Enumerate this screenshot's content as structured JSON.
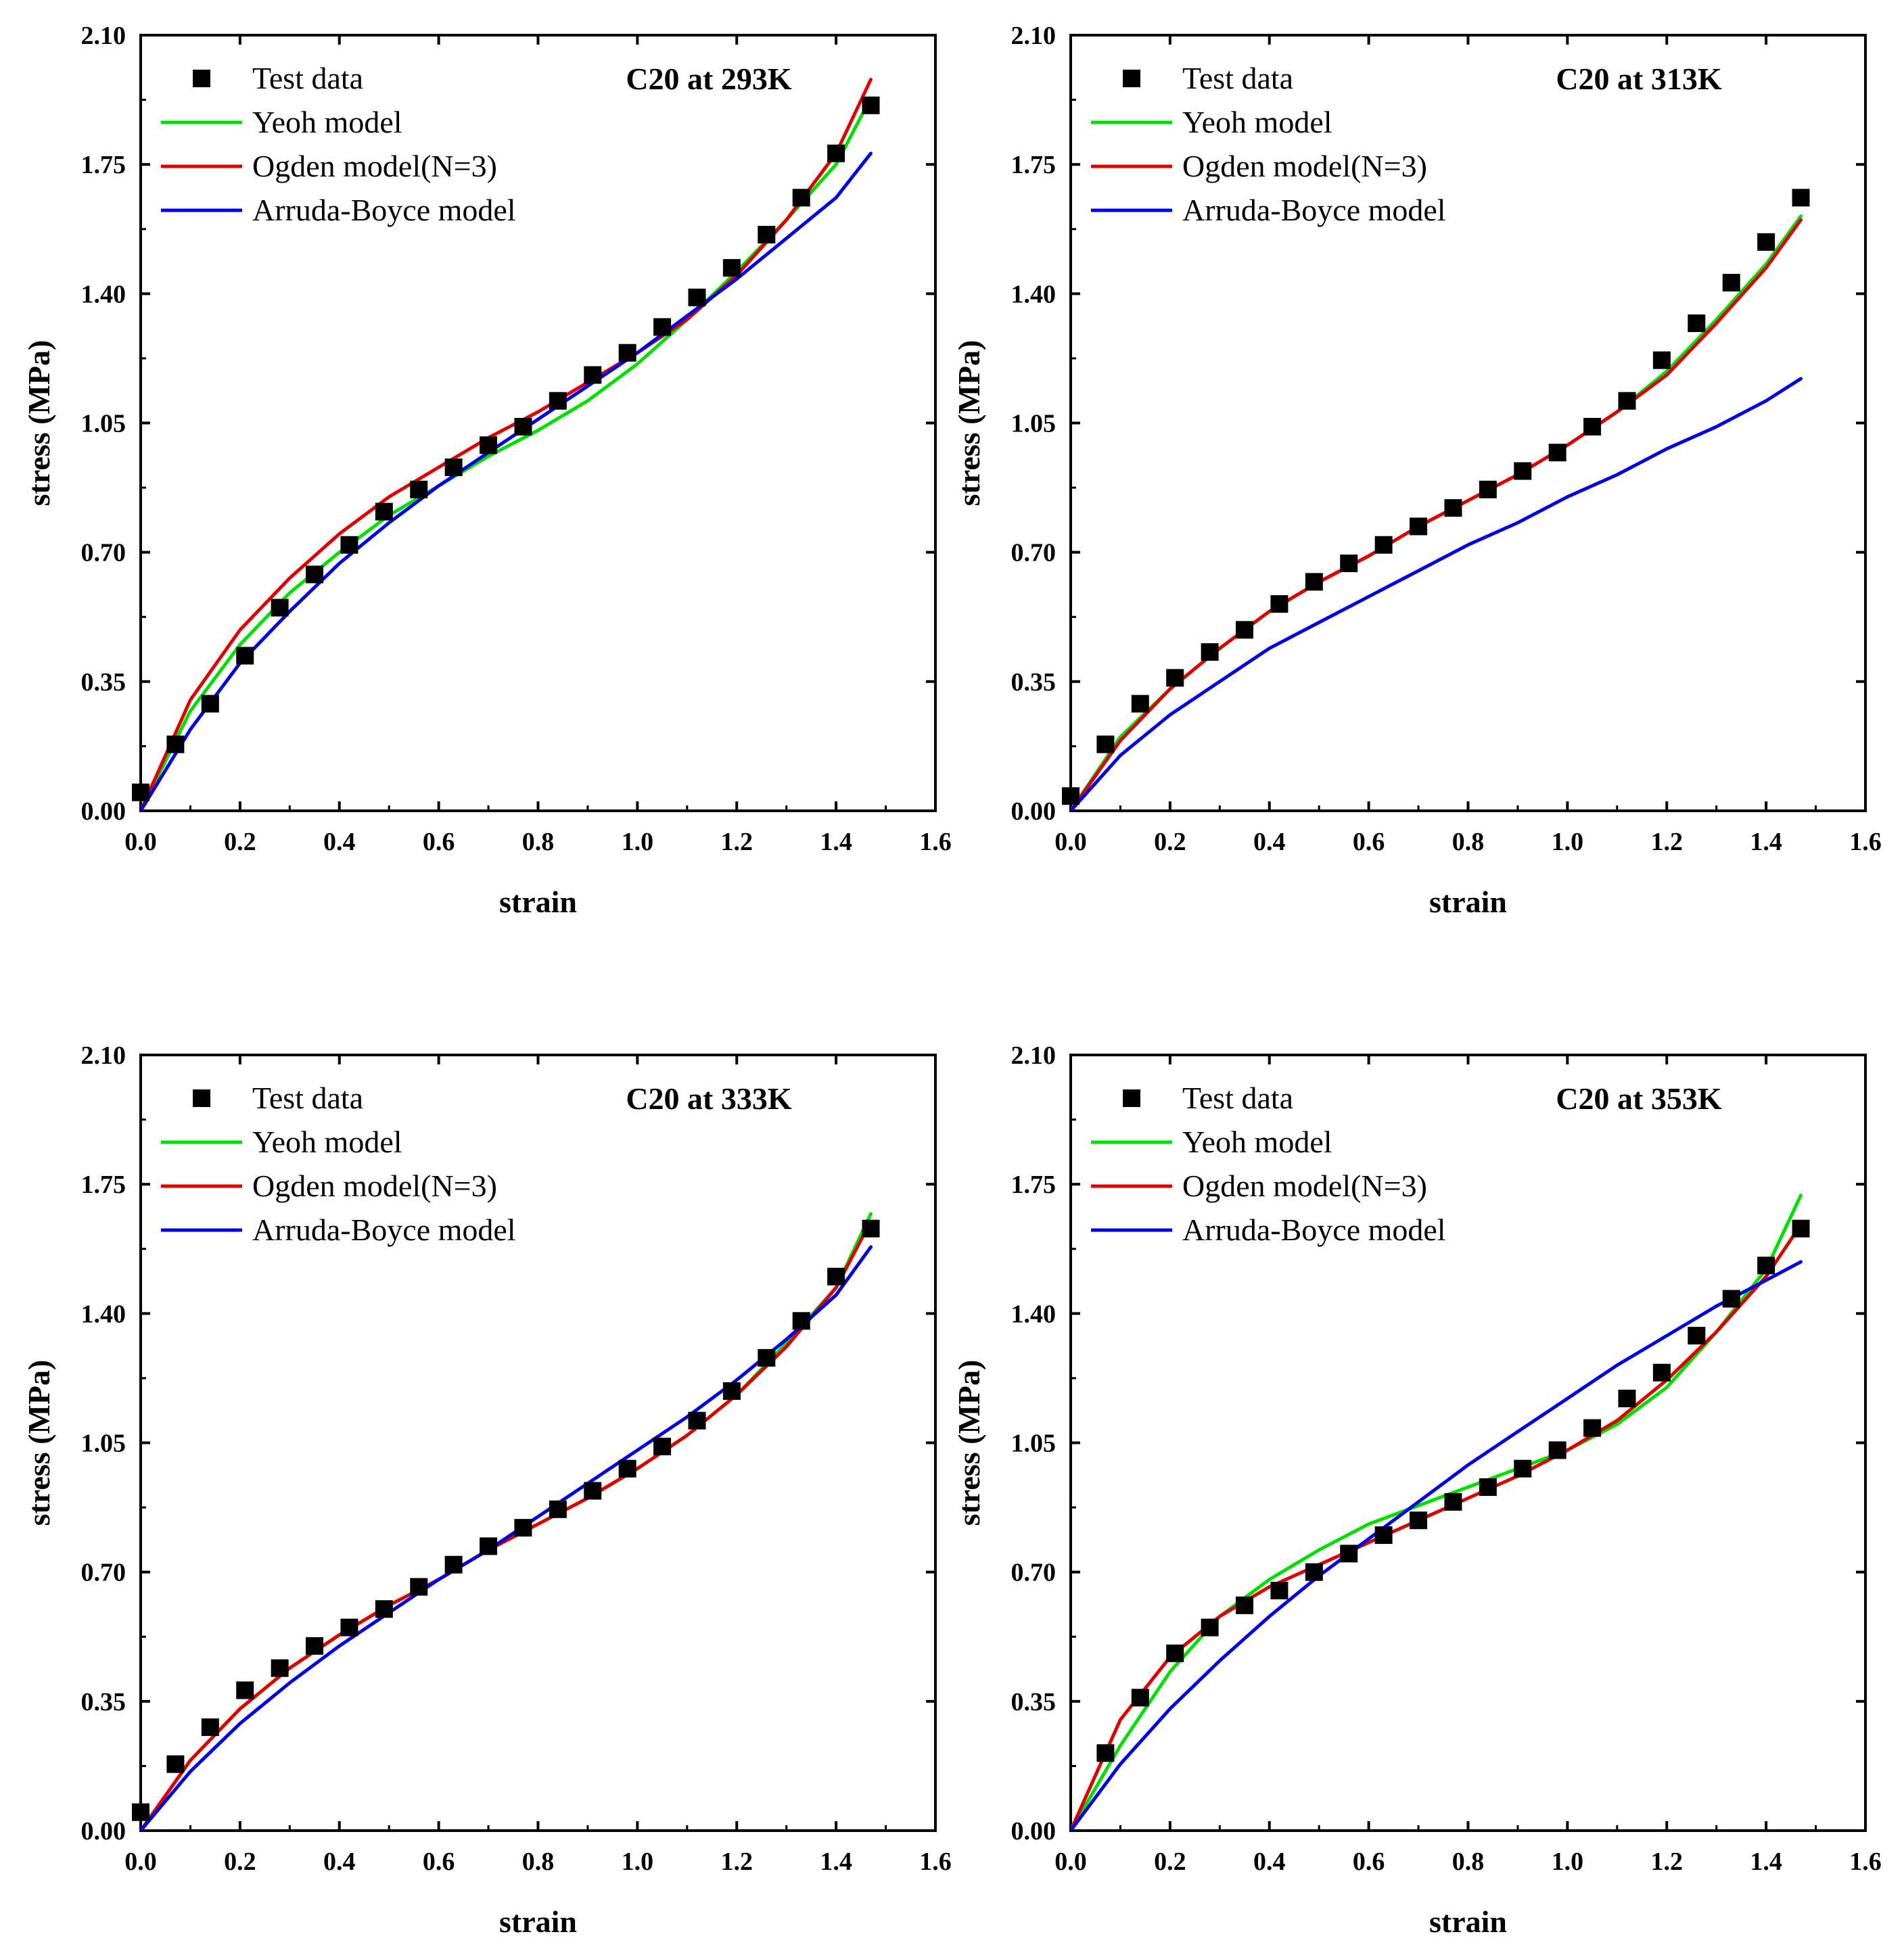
{
  "colors": {
    "test": "#000000",
    "yeoh": "#00e000",
    "ogden": "#e00000",
    "arruda": "#0000e6",
    "frame": "#000000"
  },
  "legend_labels": [
    "Test data",
    "Yeoh model",
    "Ogden model(N=3)",
    "Arruda-Boyce model"
  ],
  "chart_data": [
    {
      "type": "line",
      "title": "C20 at 293K",
      "xlabel": "strain",
      "ylabel": "stress (MPa)",
      "xlim": [
        0.0,
        1.6
      ],
      "ylim": [
        0.0,
        2.1
      ],
      "xticks": [
        "0.0",
        "0.2",
        "0.4",
        "0.6",
        "0.8",
        "1.0",
        "1.2",
        "1.4",
        "1.6"
      ],
      "yticks": [
        "0.00",
        "0.35",
        "0.70",
        "1.05",
        "1.40",
        "1.75",
        "2.10"
      ],
      "legend": "top-left",
      "series": [
        {
          "name": "Test data",
          "kind": "scatter",
          "x": [
            0.0,
            0.07,
            0.14,
            0.21,
            0.28,
            0.35,
            0.42,
            0.49,
            0.56,
            0.63,
            0.7,
            0.77,
            0.84,
            0.91,
            0.98,
            1.05,
            1.12,
            1.19,
            1.26,
            1.33,
            1.4,
            1.47
          ],
          "y": [
            0.05,
            0.18,
            0.29,
            0.42,
            0.55,
            0.64,
            0.72,
            0.81,
            0.87,
            0.93,
            0.99,
            1.04,
            1.11,
            1.18,
            1.24,
            1.31,
            1.39,
            1.47,
            1.56,
            1.66,
            1.78,
            1.91
          ]
        },
        {
          "name": "Yeoh model",
          "kind": "line",
          "x": [
            0.0,
            0.1,
            0.2,
            0.3,
            0.4,
            0.5,
            0.6,
            0.7,
            0.8,
            0.9,
            1.0,
            1.1,
            1.2,
            1.3,
            1.4,
            1.47
          ],
          "y": [
            0.0,
            0.27,
            0.45,
            0.59,
            0.7,
            0.8,
            0.88,
            0.96,
            1.03,
            1.11,
            1.21,
            1.33,
            1.46,
            1.6,
            1.75,
            1.93
          ]
        },
        {
          "name": "Ogden model(N=3)",
          "kind": "line",
          "x": [
            0.0,
            0.1,
            0.2,
            0.3,
            0.4,
            0.5,
            0.6,
            0.7,
            0.8,
            0.9,
            1.0,
            1.1,
            1.2,
            1.3,
            1.4,
            1.47
          ],
          "y": [
            0.0,
            0.3,
            0.49,
            0.63,
            0.75,
            0.85,
            0.93,
            1.01,
            1.08,
            1.16,
            1.24,
            1.33,
            1.45,
            1.6,
            1.78,
            1.98
          ]
        },
        {
          "name": "Arruda-Boyce model",
          "kind": "line",
          "x": [
            0.0,
            0.1,
            0.2,
            0.3,
            0.4,
            0.5,
            0.6,
            0.7,
            0.8,
            0.9,
            1.0,
            1.1,
            1.2,
            1.3,
            1.4,
            1.47
          ],
          "y": [
            0.0,
            0.22,
            0.4,
            0.54,
            0.67,
            0.78,
            0.88,
            0.97,
            1.06,
            1.15,
            1.24,
            1.34,
            1.44,
            1.55,
            1.66,
            1.78
          ]
        }
      ]
    },
    {
      "type": "line",
      "title": "C20 at 313K",
      "xlabel": "strain",
      "ylabel": "stress (MPa)",
      "xlim": [
        0.0,
        1.6
      ],
      "ylim": [
        0.0,
        2.1
      ],
      "xticks": [
        "0.0",
        "0.2",
        "0.4",
        "0.6",
        "0.8",
        "1.0",
        "1.2",
        "1.4",
        "1.6"
      ],
      "yticks": [
        "0.00",
        "0.35",
        "0.70",
        "1.05",
        "1.40",
        "1.75",
        "2.10"
      ],
      "legend": "top-left",
      "series": [
        {
          "name": "Test data",
          "kind": "scatter",
          "x": [
            0.0,
            0.07,
            0.14,
            0.21,
            0.28,
            0.35,
            0.42,
            0.49,
            0.56,
            0.63,
            0.7,
            0.77,
            0.84,
            0.91,
            0.98,
            1.05,
            1.12,
            1.19,
            1.26,
            1.33,
            1.4,
            1.47
          ],
          "y": [
            0.04,
            0.18,
            0.29,
            0.36,
            0.43,
            0.49,
            0.56,
            0.62,
            0.67,
            0.72,
            0.77,
            0.82,
            0.87,
            0.92,
            0.97,
            1.04,
            1.11,
            1.22,
            1.32,
            1.43,
            1.54,
            1.66
          ]
        },
        {
          "name": "Yeoh model",
          "kind": "line",
          "x": [
            0.0,
            0.1,
            0.2,
            0.3,
            0.4,
            0.5,
            0.6,
            0.7,
            0.8,
            0.9,
            1.0,
            1.1,
            1.2,
            1.3,
            1.4,
            1.47
          ],
          "y": [
            0.0,
            0.2,
            0.33,
            0.44,
            0.54,
            0.62,
            0.69,
            0.77,
            0.84,
            0.91,
            0.99,
            1.08,
            1.19,
            1.33,
            1.48,
            1.61
          ]
        },
        {
          "name": "Ogden model(N=3)",
          "kind": "line",
          "x": [
            0.0,
            0.1,
            0.2,
            0.3,
            0.4,
            0.5,
            0.6,
            0.7,
            0.8,
            0.9,
            1.0,
            1.1,
            1.2,
            1.3,
            1.4,
            1.47
          ],
          "y": [
            0.0,
            0.19,
            0.33,
            0.44,
            0.54,
            0.62,
            0.69,
            0.77,
            0.84,
            0.91,
            0.99,
            1.08,
            1.18,
            1.32,
            1.47,
            1.6
          ]
        },
        {
          "name": "Arruda-Boyce model",
          "kind": "line",
          "x": [
            0.0,
            0.1,
            0.2,
            0.3,
            0.4,
            0.5,
            0.6,
            0.7,
            0.8,
            0.9,
            1.0,
            1.1,
            1.2,
            1.3,
            1.4,
            1.47
          ],
          "y": [
            0.0,
            0.15,
            0.26,
            0.35,
            0.44,
            0.51,
            0.58,
            0.65,
            0.72,
            0.78,
            0.85,
            0.91,
            0.98,
            1.04,
            1.11,
            1.17
          ]
        }
      ]
    },
    {
      "type": "line",
      "title": "C20 at 333K",
      "xlabel": "strain",
      "ylabel": "stress (MPa)",
      "xlim": [
        0.0,
        1.6
      ],
      "ylim": [
        0.0,
        2.1
      ],
      "xticks": [
        "0.0",
        "0.2",
        "0.4",
        "0.6",
        "0.8",
        "1.0",
        "1.2",
        "1.4",
        "1.6"
      ],
      "yticks": [
        "0.00",
        "0.35",
        "0.70",
        "1.05",
        "1.40",
        "1.75",
        "2.10"
      ],
      "legend": "top-left",
      "series": [
        {
          "name": "Test data",
          "kind": "scatter",
          "x": [
            0.0,
            0.07,
            0.14,
            0.21,
            0.28,
            0.35,
            0.42,
            0.49,
            0.56,
            0.63,
            0.7,
            0.77,
            0.84,
            0.91,
            0.98,
            1.05,
            1.12,
            1.19,
            1.26,
            1.33,
            1.4,
            1.47
          ],
          "y": [
            0.05,
            0.18,
            0.28,
            0.38,
            0.44,
            0.5,
            0.55,
            0.6,
            0.66,
            0.72,
            0.77,
            0.82,
            0.87,
            0.92,
            0.98,
            1.04,
            1.11,
            1.19,
            1.28,
            1.38,
            1.5,
            1.63
          ]
        },
        {
          "name": "Yeoh model",
          "kind": "line",
          "x": [
            0.0,
            0.1,
            0.2,
            0.3,
            0.4,
            0.5,
            0.6,
            0.7,
            0.8,
            0.9,
            1.0,
            1.1,
            1.2,
            1.3,
            1.4,
            1.47
          ],
          "y": [
            0.0,
            0.19,
            0.33,
            0.44,
            0.53,
            0.61,
            0.68,
            0.76,
            0.83,
            0.9,
            0.98,
            1.07,
            1.18,
            1.32,
            1.47,
            1.67
          ]
        },
        {
          "name": "Ogden model(N=3)",
          "kind": "line",
          "x": [
            0.0,
            0.1,
            0.2,
            0.3,
            0.4,
            0.5,
            0.6,
            0.7,
            0.8,
            0.9,
            1.0,
            1.1,
            1.2,
            1.3,
            1.4,
            1.47
          ],
          "y": [
            0.0,
            0.19,
            0.33,
            0.44,
            0.53,
            0.61,
            0.68,
            0.76,
            0.83,
            0.9,
            0.98,
            1.07,
            1.18,
            1.31,
            1.47,
            1.65
          ]
        },
        {
          "name": "Arruda-Boyce model",
          "kind": "line",
          "x": [
            0.0,
            0.1,
            0.2,
            0.3,
            0.4,
            0.5,
            0.6,
            0.7,
            0.8,
            0.9,
            1.0,
            1.1,
            1.2,
            1.3,
            1.4,
            1.47
          ],
          "y": [
            0.0,
            0.16,
            0.29,
            0.4,
            0.5,
            0.59,
            0.68,
            0.76,
            0.85,
            0.94,
            1.03,
            1.12,
            1.22,
            1.33,
            1.45,
            1.58
          ]
        }
      ]
    },
    {
      "type": "line",
      "title": "C20 at 353K",
      "xlabel": "strain",
      "ylabel": "stress (MPa)",
      "xlim": [
        0.0,
        1.6
      ],
      "ylim": [
        0.0,
        2.1
      ],
      "xticks": [
        "0.0",
        "0.2",
        "0.4",
        "0.6",
        "0.8",
        "1.0",
        "1.2",
        "1.4",
        "1.6"
      ],
      "yticks": [
        "0.00",
        "0.35",
        "0.70",
        "1.05",
        "1.40",
        "1.75",
        "2.10"
      ],
      "legend": "top-left",
      "series": [
        {
          "name": "Test data",
          "kind": "scatter",
          "x": [
            0.07,
            0.14,
            0.21,
            0.28,
            0.35,
            0.42,
            0.49,
            0.56,
            0.63,
            0.7,
            0.77,
            0.84,
            0.91,
            0.98,
            1.05,
            1.12,
            1.19,
            1.26,
            1.33,
            1.4,
            1.47
          ],
          "y": [
            0.21,
            0.36,
            0.48,
            0.55,
            0.61,
            0.65,
            0.7,
            0.75,
            0.8,
            0.84,
            0.89,
            0.93,
            0.98,
            1.03,
            1.09,
            1.17,
            1.24,
            1.34,
            1.44,
            1.53,
            1.63
          ]
        },
        {
          "name": "Yeoh model",
          "kind": "line",
          "x": [
            0.0,
            0.1,
            0.2,
            0.3,
            0.4,
            0.5,
            0.6,
            0.7,
            0.8,
            0.9,
            1.0,
            1.1,
            1.2,
            1.3,
            1.4,
            1.47
          ],
          "y": [
            0.0,
            0.23,
            0.43,
            0.58,
            0.68,
            0.76,
            0.83,
            0.88,
            0.93,
            0.98,
            1.03,
            1.1,
            1.2,
            1.35,
            1.52,
            1.72
          ]
        },
        {
          "name": "Ogden model(N=3)",
          "kind": "line",
          "x": [
            0.0,
            0.1,
            0.2,
            0.3,
            0.4,
            0.5,
            0.6,
            0.7,
            0.8,
            0.9,
            1.0,
            1.1,
            1.2,
            1.3,
            1.4,
            1.47
          ],
          "y": [
            0.0,
            0.3,
            0.47,
            0.58,
            0.66,
            0.72,
            0.78,
            0.84,
            0.9,
            0.96,
            1.03,
            1.11,
            1.22,
            1.35,
            1.5,
            1.64
          ]
        },
        {
          "name": "Arruda-Boyce model",
          "kind": "line",
          "x": [
            0.0,
            0.1,
            0.2,
            0.3,
            0.4,
            0.5,
            0.6,
            0.7,
            0.8,
            0.9,
            1.0,
            1.1,
            1.2,
            1.3,
            1.4,
            1.47
          ],
          "y": [
            0.0,
            0.18,
            0.33,
            0.46,
            0.58,
            0.69,
            0.79,
            0.89,
            0.99,
            1.08,
            1.17,
            1.26,
            1.34,
            1.42,
            1.49,
            1.54
          ]
        }
      ]
    }
  ]
}
